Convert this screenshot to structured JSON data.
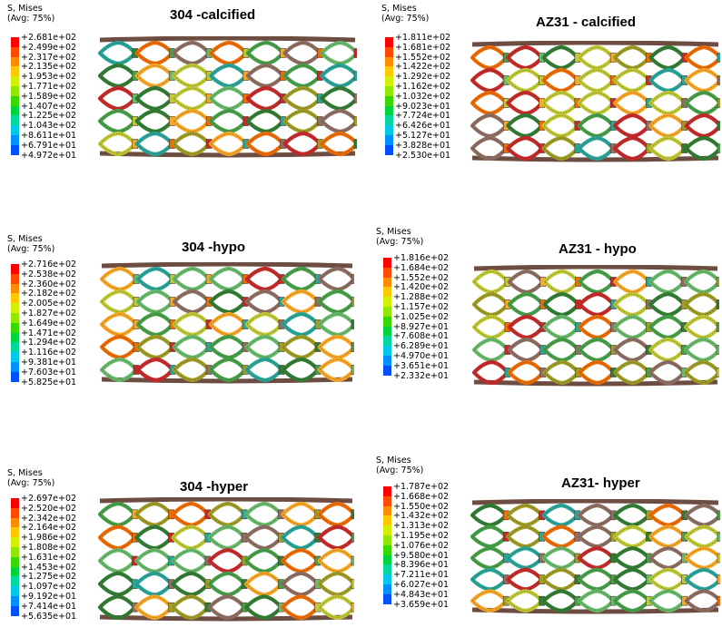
{
  "legend_header": {
    "line1": "S, Mises",
    "line2": "(Avg: 75%)"
  },
  "colors": [
    "#ff0000",
    "#ff4a00",
    "#ff8c00",
    "#ffc800",
    "#d4f000",
    "#90e800",
    "#38d800",
    "#00d43c",
    "#00d8a0",
    "#00c8e8",
    "#0090ff",
    "#0050ff",
    "#0000ff"
  ],
  "panels": [
    {
      "title": "304 -calcified",
      "material": "304",
      "condition": "calcified",
      "values": [
        "+2.681e+02",
        "+2.499e+02",
        "+2.317e+02",
        "+2.135e+02",
        "+1.953e+02",
        "+1.771e+02",
        "+1.589e+02",
        "+1.407e+02",
        "+1.225e+02",
        "+1.043e+02",
        "+8.611e+01",
        "+6.791e+01",
        "+4.972e+01"
      ]
    },
    {
      "title": "AZ31 - calcified",
      "material": "AZ31",
      "condition": "calcified",
      "values": [
        "+1.811e+02",
        "+1.681e+02",
        "+1.552e+02",
        "+1.422e+02",
        "+1.292e+02",
        "+1.162e+02",
        "+1.032e+02",
        "+9.023e+01",
        "+7.724e+01",
        "+6.426e+01",
        "+5.127e+01",
        "+3.828e+01",
        "+2.530e+01"
      ]
    },
    {
      "title": "304 -hypo",
      "material": "304",
      "condition": "hypo",
      "values": [
        "+2.716e+02",
        "+2.538e+02",
        "+2.360e+02",
        "+2.182e+02",
        "+2.005e+02",
        "+1.827e+02",
        "+1.649e+02",
        "+1.471e+02",
        "+1.294e+02",
        "+1.116e+02",
        "+9.381e+01",
        "+7.603e+01",
        "+5.825e+01"
      ]
    },
    {
      "title": "AZ31 - hypo",
      "material": "AZ31",
      "condition": "hypo",
      "values": [
        "+1.816e+02",
        "+1.684e+02",
        "+1.552e+02",
        "+1.420e+02",
        "+1.288e+02",
        "+1.157e+02",
        "+1.025e+02",
        "+8.927e+01",
        "+7.608e+01",
        "+6.289e+01",
        "+4.970e+01",
        "+3.651e+01",
        "+2.332e+01"
      ]
    },
    {
      "title": "304 -hyper",
      "material": "304",
      "condition": "hyper",
      "values": [
        "+2.697e+02",
        "+2.520e+02",
        "+2.342e+02",
        "+2.164e+02",
        "+1.986e+02",
        "+1.808e+02",
        "+1.631e+02",
        "+1.453e+02",
        "+1.275e+02",
        "+1.097e+02",
        "+9.192e+01",
        "+7.414e+01",
        "+5.635e+01"
      ]
    },
    {
      "title": "AZ31- hyper",
      "material": "AZ31",
      "condition": "hyper",
      "values": [
        "+1.787e+02",
        "+1.668e+02",
        "+1.550e+02",
        "+1.432e+02",
        "+1.313e+02",
        "+1.195e+02",
        "+1.076e+02",
        "+9.580e+01",
        "+8.396e+01",
        "+7.211e+01",
        "+6.027e+01",
        "+4.843e+01",
        "+3.659e+01"
      ]
    }
  ]
}
